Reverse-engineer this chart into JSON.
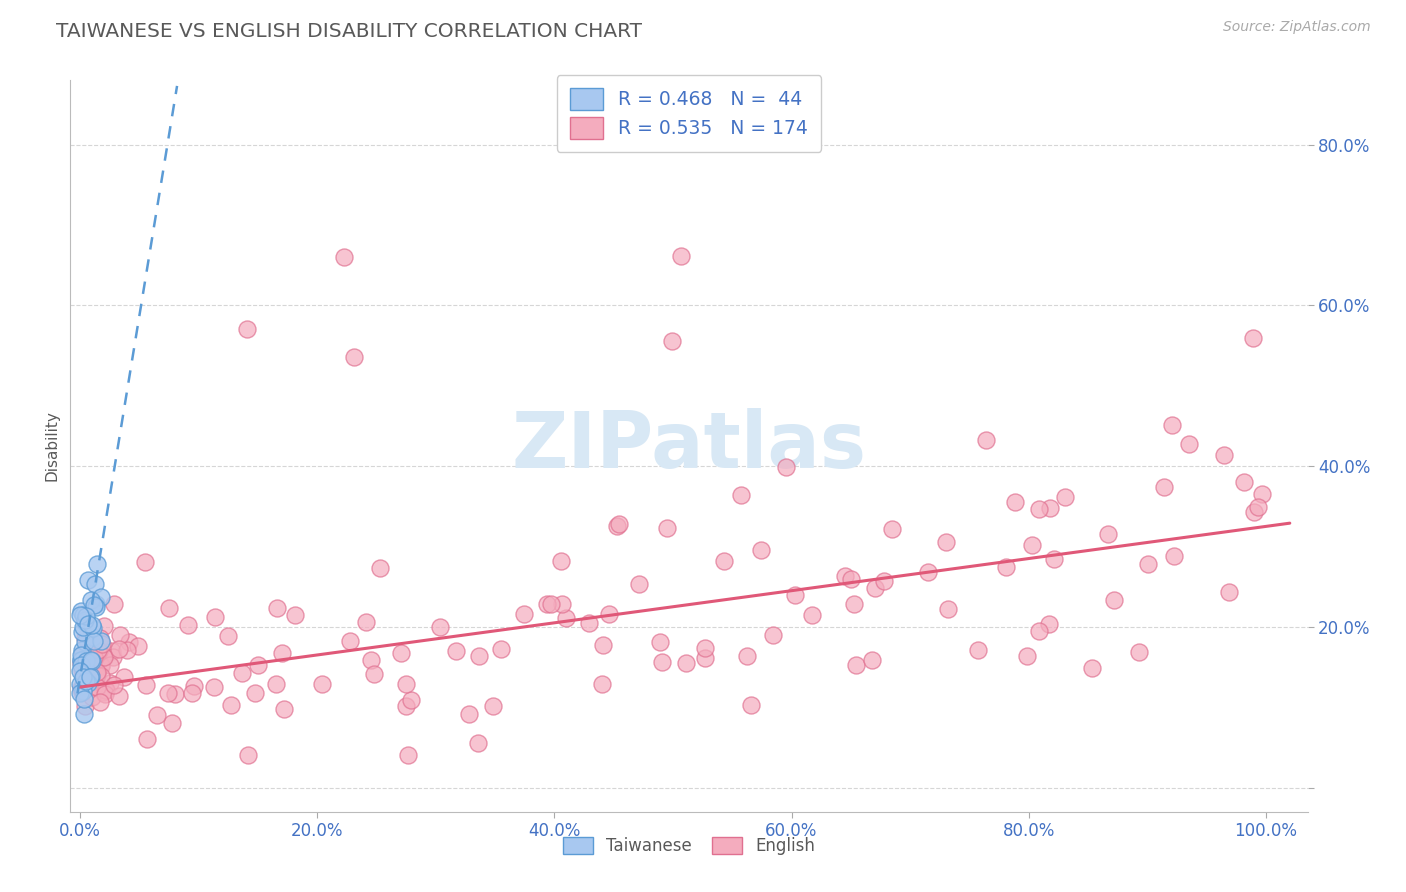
{
  "title": "TAIWANESE VS ENGLISH DISABILITY CORRELATION CHART",
  "source": "Source: ZipAtlas.com",
  "ylabel": "Disability",
  "blue_color": "#A8C8F0",
  "pink_color": "#F4ACBE",
  "blue_edge_color": "#5B9BD5",
  "pink_edge_color": "#E07090",
  "blue_line_color": "#5B9BD5",
  "pink_line_color": "#E05878",
  "title_color": "#595959",
  "axis_label_color": "#4472C4",
  "watermark_color": "#D8E8F5",
  "background_color": "#FFFFFF",
  "grid_color": "#CCCCCC",
  "legend_r1": "R = 0.468",
  "legend_n1": "N =  44",
  "legend_r2": "R = 0.535",
  "legend_n2": "N = 174"
}
